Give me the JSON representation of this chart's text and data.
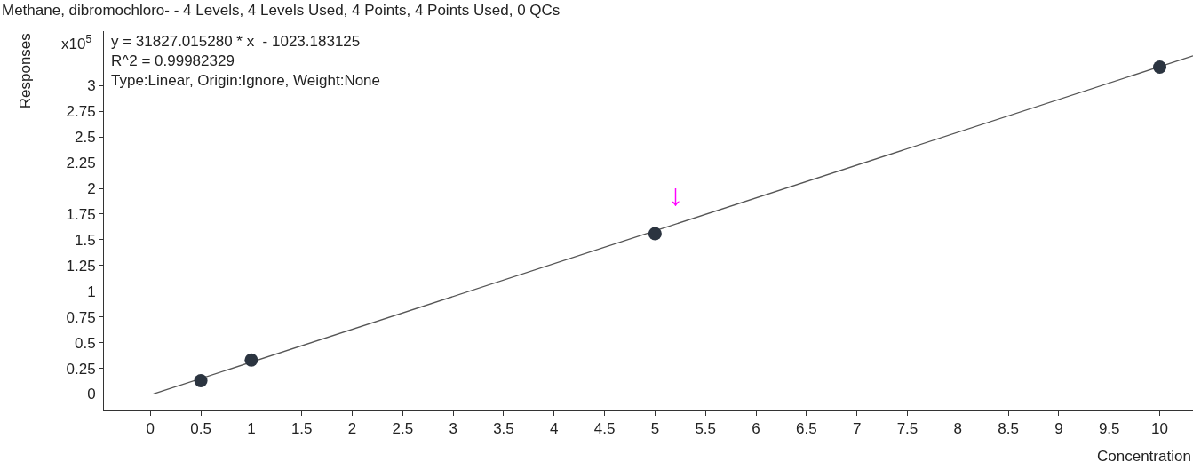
{
  "chart_data": {
    "type": "scatter",
    "title": "Methane, dibromochloro- - 4 Levels, 4 Levels Used, 4 Points, 4 Points Used, 0 QCs",
    "xlabel": "Concentration",
    "ylabel": "Responses",
    "series": [
      {
        "type": "line",
        "color": "#555555",
        "x": [
          0.03,
          10.33
        ],
        "values": [
          0.0,
          3.29
        ],
        "marker": "none",
        "line_style": "solid"
      },
      {
        "color": "#2b3440",
        "x": [
          0.5,
          1,
          5,
          10
        ],
        "values": [
          0.13,
          0.33,
          1.56,
          3.18
        ],
        "marker": "circle"
      }
    ],
    "xlim": [
      -0.46,
      10.33
    ],
    "ylim": [
      -0.16,
      3.53
    ],
    "xticks": [
      0,
      0.5,
      1,
      1.5,
      2,
      2.5,
      3,
      3.5,
      4,
      4.5,
      5,
      5.5,
      6,
      6.5,
      7,
      7.5,
      8,
      8.5,
      9,
      9.5,
      10
    ],
    "yticks": [
      0,
      0.25,
      0.5,
      0.75,
      1,
      1.25,
      1.5,
      1.75,
      2,
      2.25,
      2.5,
      2.75,
      3
    ],
    "annotations": [
      "x10$^{5}$",
      "y = 31827.015280 * x  - 1023.183125",
      "R^2 = 0.99982329",
      "Type:Linear, Origin:Ignore, Weight:None",
      "↓"
    ]
  }
}
